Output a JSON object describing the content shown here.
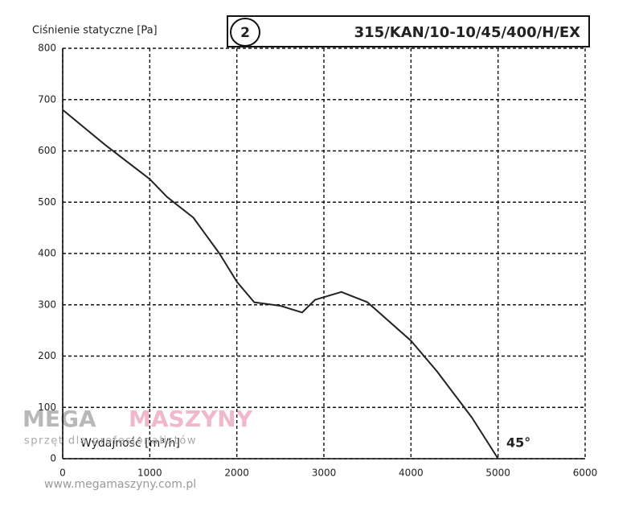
{
  "chart_data": {
    "type": "line",
    "title": "315/KAN/10-10/45/400/H/EX",
    "badge": "2",
    "y_label": "Ciśnienie statyczne [Pa]",
    "x_label": "Wydajność [m³/h]",
    "annotation": "45°",
    "x": [
      0,
      500,
      1000,
      1200,
      1500,
      1800,
      2000,
      2200,
      2500,
      2750,
      2900,
      3200,
      3500,
      4000,
      4300,
      4700,
      5000
    ],
    "values": [
      680,
      610,
      545,
      510,
      470,
      400,
      345,
      305,
      298,
      285,
      310,
      325,
      305,
      230,
      170,
      80,
      0
    ],
    "color": "#222222",
    "xlim": [
      0,
      6000
    ],
    "xticks": [
      0,
      1000,
      2000,
      3000,
      4000,
      5000,
      6000
    ],
    "ylim": [
      0,
      800
    ],
    "yticks": [
      0,
      100,
      200,
      300,
      400,
      500,
      600,
      700,
      800
    ],
    "grid": true
  },
  "watermark": {
    "brand_left": "MEGA",
    "brand_right": "MASZYNY",
    "tagline": "sprzęt dla profesjonalistów",
    "url": "www.megamaszyny.com.pl"
  }
}
